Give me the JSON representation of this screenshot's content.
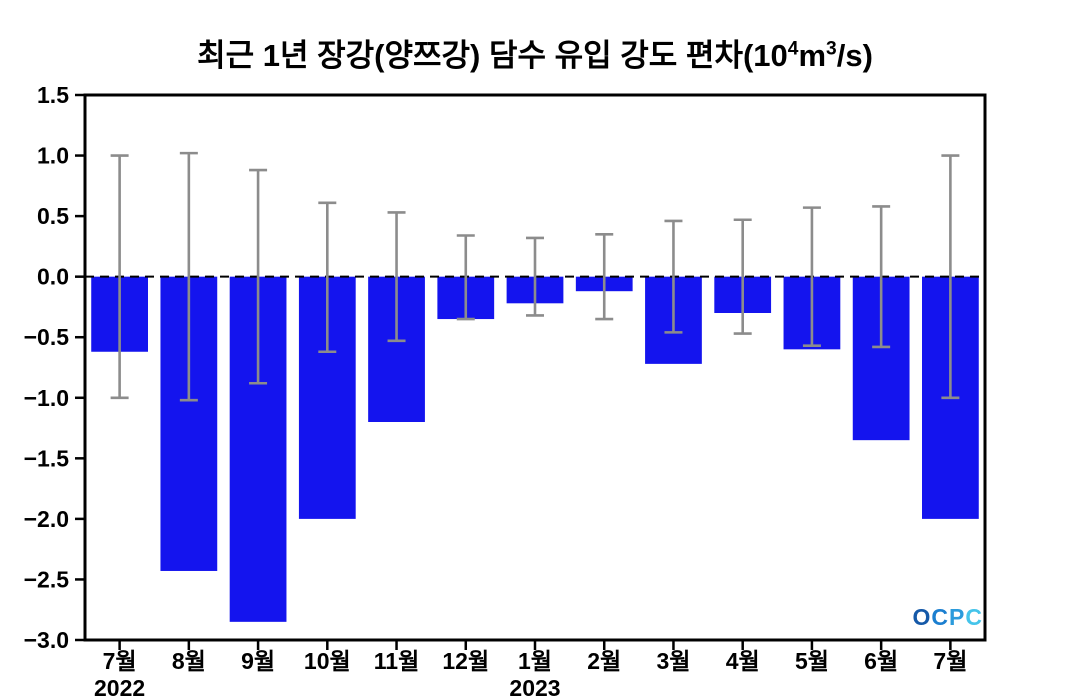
{
  "title": {
    "prefix": "최근 1년 장강(양쯔강) 담수 유입 강도 편차(10",
    "sup1": "4",
    "mid": "m",
    "sup2": "3",
    "suffix": "/s)"
  },
  "watermark": {
    "letters": [
      "O",
      "C",
      "P",
      "C"
    ],
    "colors": [
      "#1559a8",
      "#1b7fd0",
      "#2b9bdc",
      "#45c4ea"
    ]
  },
  "chart_data": {
    "type": "bar",
    "title": "최근 1년 장강(양쯔강) 담수 유입 강도 편차(10⁴m³/s)",
    "categories": [
      "7월",
      "8월",
      "9월",
      "10월",
      "11월",
      "12월",
      "1월",
      "2월",
      "3월",
      "4월",
      "5월",
      "6월",
      "7월"
    ],
    "year_labels": [
      {
        "index": 0,
        "label": "2022"
      },
      {
        "index": 6,
        "label": "2023"
      }
    ],
    "values": [
      -0.62,
      -2.43,
      -2.85,
      -2.0,
      -1.2,
      -0.35,
      -0.22,
      -0.12,
      -0.72,
      -0.3,
      -0.6,
      -1.35,
      -2.0
    ],
    "error_upper": [
      1.0,
      1.02,
      0.88,
      0.61,
      0.53,
      0.34,
      0.32,
      0.35,
      0.46,
      0.47,
      0.57,
      0.58,
      1.0
    ],
    "error_lower": [
      -1.0,
      -1.02,
      -0.88,
      -0.62,
      -0.53,
      -0.35,
      -0.32,
      -0.35,
      -0.46,
      -0.47,
      -0.57,
      -0.58,
      -1.0
    ],
    "ylim": [
      -3.0,
      1.5
    ],
    "ytick_step": 0.5,
    "xlabel": "",
    "ylabel": "",
    "grid": false,
    "zero_line": "dashed",
    "bar_color": "#1414ee",
    "error_color": "#8c8c8c",
    "axis_color": "#000000"
  }
}
